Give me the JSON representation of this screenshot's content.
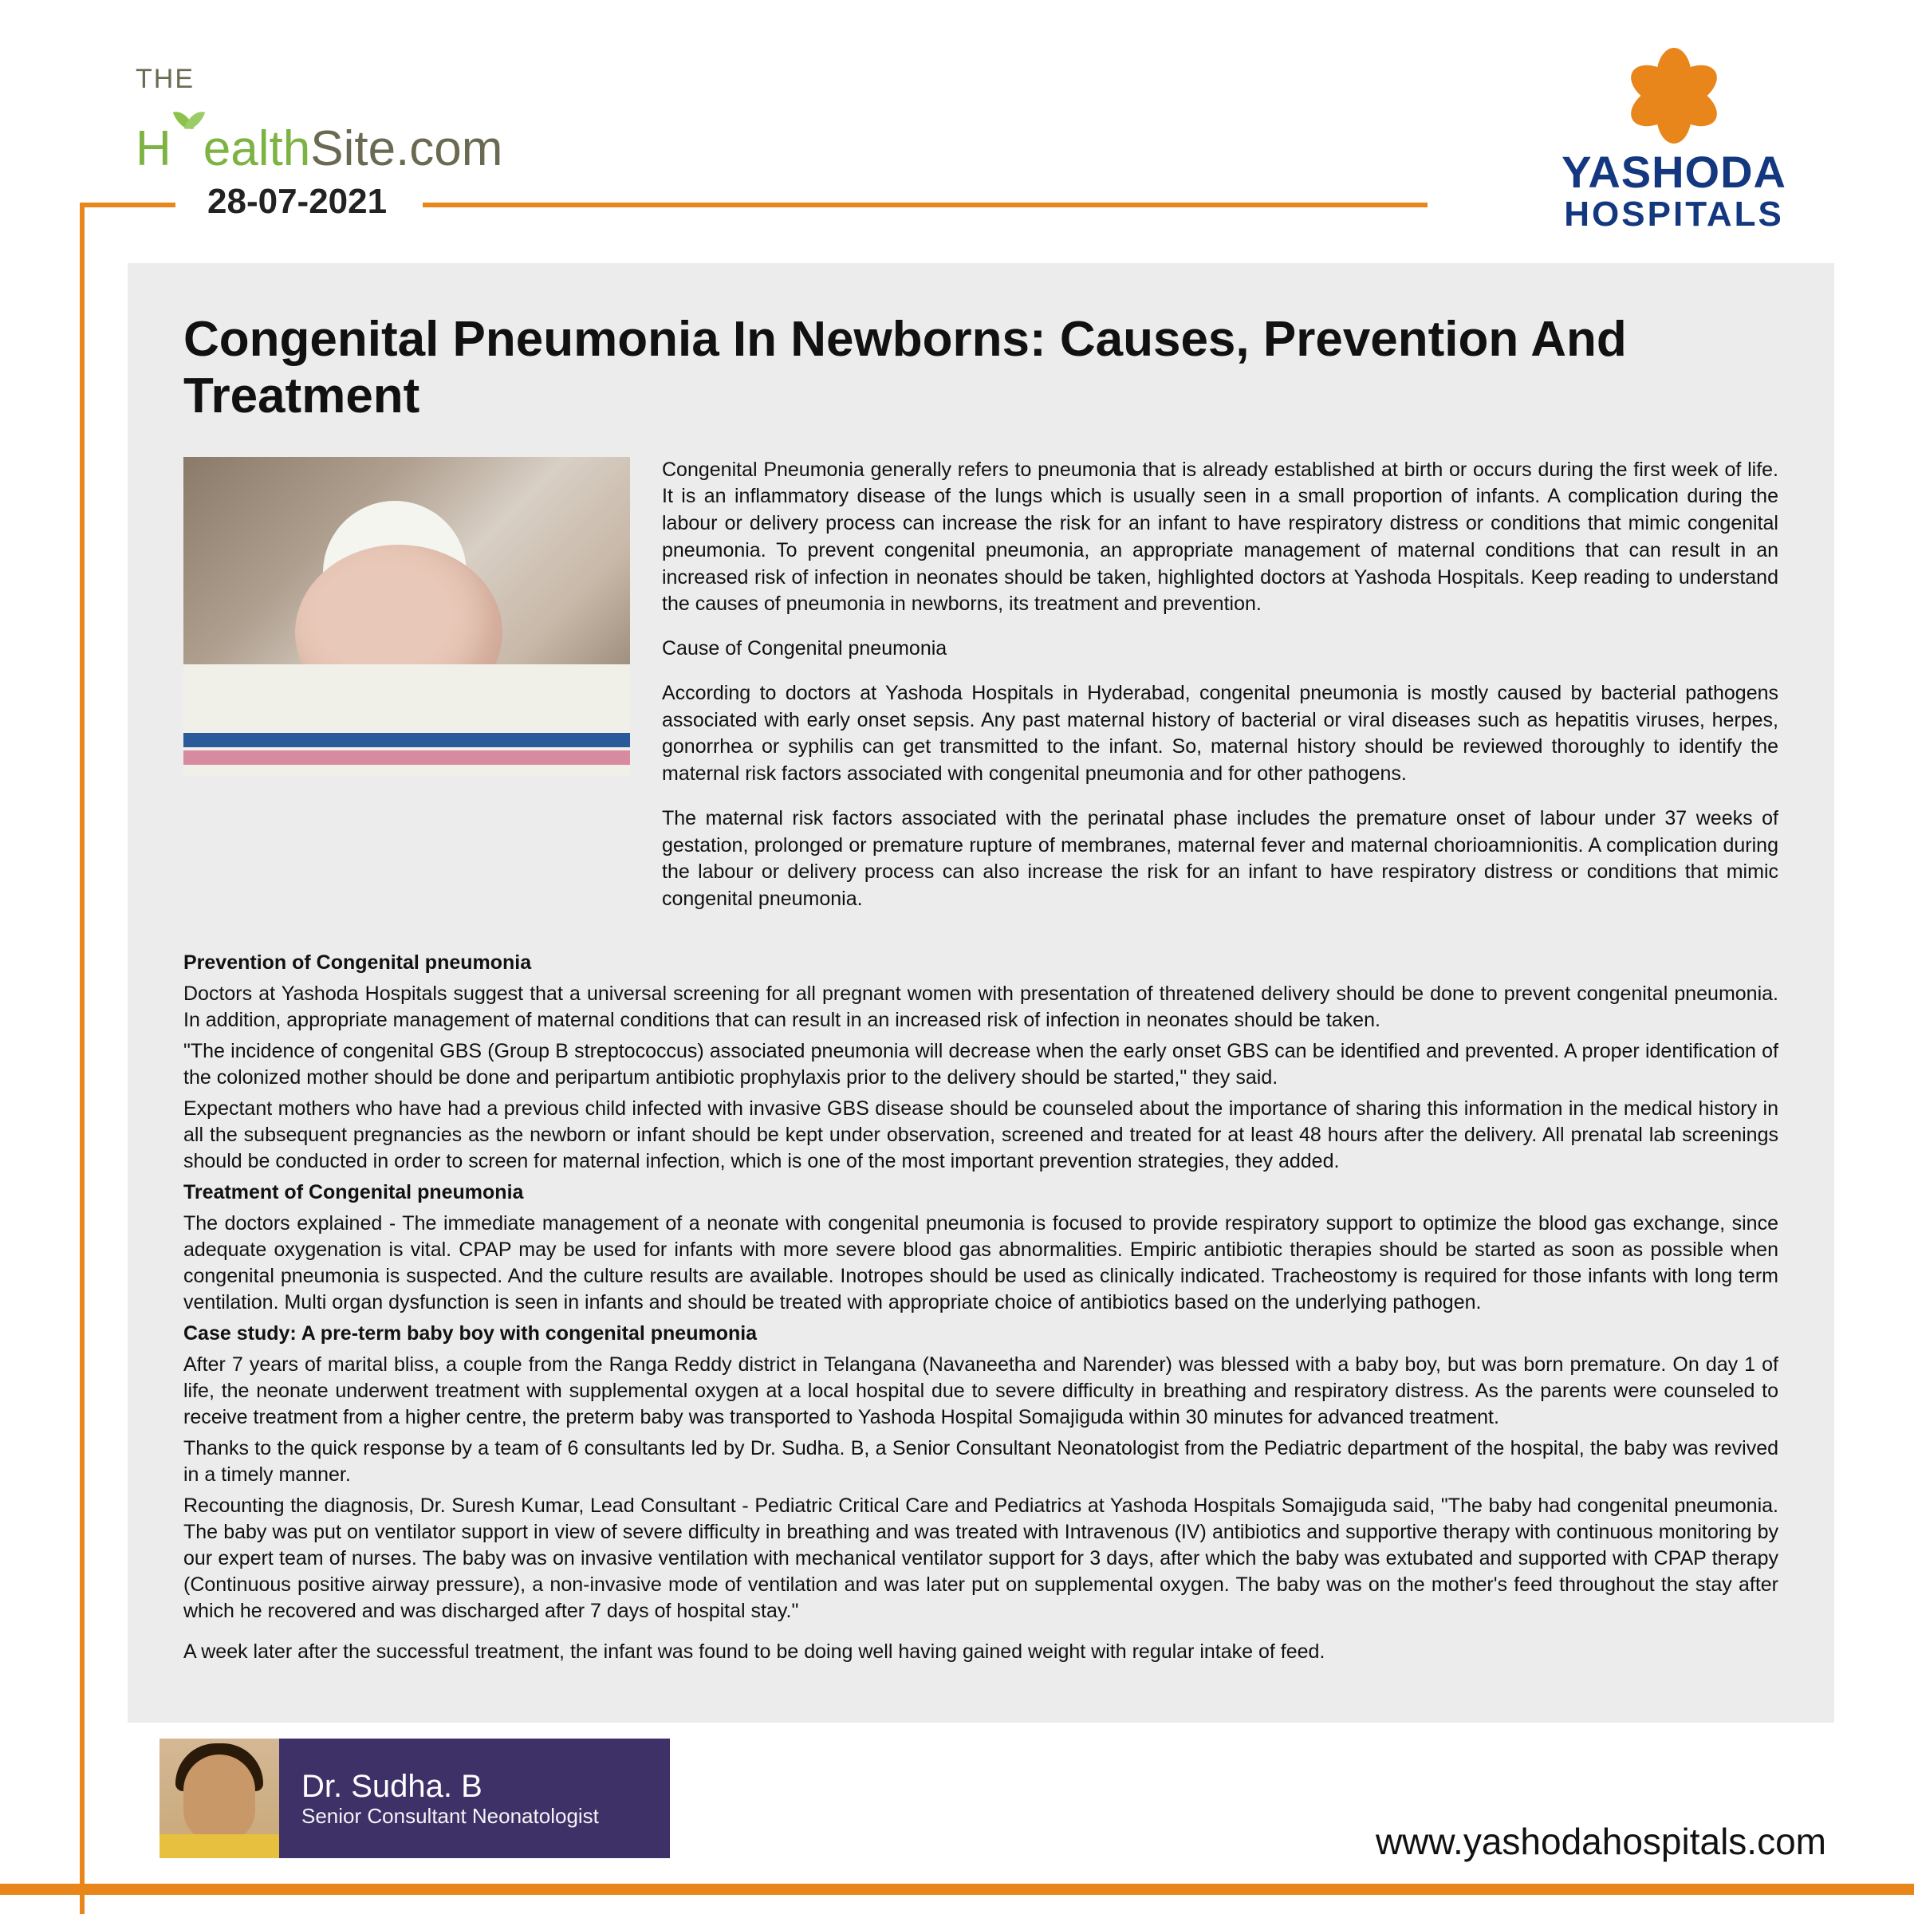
{
  "source_logo": {
    "prefix": "THE",
    "main": "HealthSite",
    "suffix": ".com",
    "text_color": "#6a6a53",
    "accent_color": "#7cb342"
  },
  "hospital_logo": {
    "name": "YASHODA",
    "sub": "HOSPITALS",
    "color": "#14387f",
    "flower_color": "#e8861c"
  },
  "date": "28-07-2021",
  "frame_color": "#e8861c",
  "content_bg": "#ececec",
  "article": {
    "title": "Congenital Pneumonia In Newborns:  Causes, Prevention And Treatment",
    "intro": "Congenital Pneumonia generally refers to pneumonia that is already established at birth or occurs during the first week of life. It is an inflammatory disease of the lungs which is usually seen in a small proportion of infants. A complication during the labour or delivery process can increase the risk for an infant to have respiratory distress or conditions that mimic congenital pneumonia. To prevent congenital pneumonia, an appropriate management of maternal conditions that can result in an increased risk of infection in neonates should be taken, highlighted doctors at Yashoda Hospitals. Keep reading to understand the causes of pneumonia in newborns, its treatment and prevention.",
    "cause_head": "Cause of Congenital pneumonia",
    "cause_p1": "According to doctors at Yashoda Hospitals in Hyderabad, congenital pneumonia is mostly caused by bacterial pathogens associated with early onset sepsis. Any past maternal history of bacterial or viral diseases such as hepatitis viruses, herpes, gonorrhea or syphilis can get transmitted to the infant. So, maternal history should be reviewed thoroughly to identify the maternal risk factors associated with congenital pneumonia and for other pathogens.",
    "cause_p2": "The maternal risk factors associated with the perinatal phase includes the premature onset of labour under 37 weeks of gestation, prolonged or premature rupture of membranes, maternal fever and maternal chorioamnionitis. A complication during the labour or delivery process can also increase the risk for an infant to have respiratory distress or conditions that mimic congenital pneumonia.",
    "prev_head": "Prevention of Congenital pneumonia",
    "prev_p1": "Doctors at Yashoda Hospitals suggest that a universal screening for all pregnant women with presentation of threatened delivery should be done to prevent congenital pneumonia. In addition, appropriate management of maternal conditions that can result in an increased risk of infection in neonates should be taken.",
    "prev_p2": "\"The incidence of congenital GBS (Group B streptococcus) associated pneumonia will decrease when the early onset GBS can be identified and prevented. A proper identification of the colonized mother should be done and peripartum antibiotic prophylaxis prior to the delivery should be started,\" they said.",
    "prev_p3": "Expectant mothers who have had a previous child infected with invasive GBS disease should be counseled about the importance of sharing this information in the medical history in all the subsequent pregnancies as the newborn or infant should be kept under observation, screened and treated for at least 48 hours after the delivery. All prenatal lab screenings should be conducted in order to screen for maternal infection, which is one of the most important prevention strategies, they added.",
    "treat_head": "Treatment of Congenital pneumonia",
    "treat_p1": "The doctors explained - The immediate management of a neonate with congenital pneumonia is focused to provide respiratory support to optimize the blood gas exchange, since adequate oxygenation is vital. CPAP may be used for infants with more severe blood gas abnormalities. Empiric antibiotic therapies should be started as soon as possible when congenital pneumonia is suspected. And the culture results are available. Inotropes should be used as clinically indicated. Tracheostomy is required for those infants with long term ventilation. Multi organ dysfunction is seen in infants and should be treated with appropriate choice of antibiotics based on the underlying pathogen.",
    "case_head": "Case study: A pre-term baby boy with congenital pneumonia",
    "case_p1": "After 7 years of marital bliss, a couple from the Ranga Reddy district in Telangana (Navaneetha and Narender) was blessed with a baby boy, but was born premature. On day 1 of life, the neonate underwent treatment with supplemental oxygen at a local hospital due to severe difficulty in breathing and respiratory distress. As the parents were counseled to receive treatment from a higher centre, the preterm baby was transported to Yashoda Hospital Somajiguda within 30 minutes for advanced treatment.",
    "case_p2": "Thanks to the quick response by a team of 6 consultants led by Dr. Sudha. B, a Senior Consultant Neonatologist from the Pediatric department of the hospital, the baby was revived in a timely manner.",
    "case_p3": "Recounting the diagnosis, Dr. Suresh Kumar, Lead Consultant - Pediatric Critical Care and Pediatrics at Yashoda Hospitals Somajiguda said, \"The baby had congenital pneumonia. The baby was put on ventilator support in view of severe difficulty in breathing and was treated with Intravenous (IV) antibiotics and supportive therapy with continuous monitoring by our expert team of nurses. The baby was on invasive ventilation with mechanical ventilator support for 3 days, after which the baby was extubated and supported with CPAP therapy (Continuous positive airway pressure), a non-invasive mode of ventilation and was later put on supplemental oxygen. The baby was on the mother's feed throughout the stay after which he recovered and was discharged after 7 days of hospital stay.\"",
    "case_p4": "A week later after the successful treatment, the infant was found to be doing well having gained weight with regular intake of feed."
  },
  "doctor": {
    "name": "Dr. Sudha. B",
    "role": "Senior Consultant Neonatologist",
    "card_bg": "#3d3168"
  },
  "footer_url": "www.yashodahospitals.com"
}
